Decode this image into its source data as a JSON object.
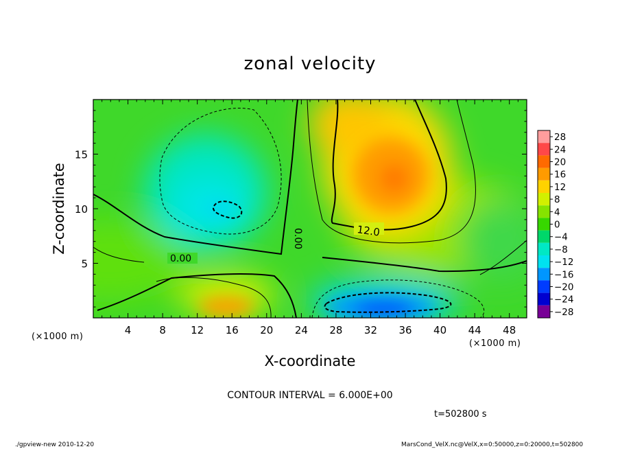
{
  "chart_data": {
    "type": "heatmap",
    "title": "zonal velocity",
    "xlabel": "X-coordinate",
    "ylabel": "Z-coordinate",
    "x_unit": "(×1000 m)",
    "xlim": [
      0,
      50
    ],
    "ylim": [
      0,
      20
    ],
    "x_ticks": [
      4,
      8,
      12,
      16,
      20,
      24,
      28,
      32,
      36,
      40,
      44,
      48
    ],
    "y_ticks": [
      5,
      10,
      15
    ],
    "colorbar": {
      "levels": [
        28,
        24,
        20,
        16,
        12,
        8,
        4,
        0,
        -4,
        -8,
        -12,
        -16,
        -20,
        -24,
        -28
      ],
      "colors": [
        "#ff9d9d",
        "#ff4848",
        "#ff6a00",
        "#ff9b00",
        "#ffd200",
        "#d2f000",
        "#86e300",
        "#37d700",
        "#00d76a",
        "#00e8c4",
        "#00e2f0",
        "#0096ff",
        "#003cff",
        "#0000d0",
        "#780096"
      ]
    },
    "contour_interval": "CONTOUR INTERVAL = 6.000E+00",
    "contour_labels": [
      "0.00",
      "0.00",
      "12.0"
    ],
    "regions": [
      {
        "name": "positive maximum",
        "x": 34,
        "z": 13,
        "value": 16
      },
      {
        "name": "negative minimum",
        "x": 14,
        "z": 10,
        "value": -10
      },
      {
        "name": "surface positive",
        "x": 16,
        "z": 1,
        "value": 14
      },
      {
        "name": "surface negative",
        "x": 34,
        "z": 1,
        "value": -18
      }
    ],
    "time": "t=502800 s"
  },
  "footer": {
    "left": "./gpview-new   2010-12-20",
    "right": "MarsCond_VelX.nc@VelX,x=0:50000,z=0:20000,t=502800"
  },
  "colors": {
    "background": "#ffffff",
    "line": "#000000"
  }
}
